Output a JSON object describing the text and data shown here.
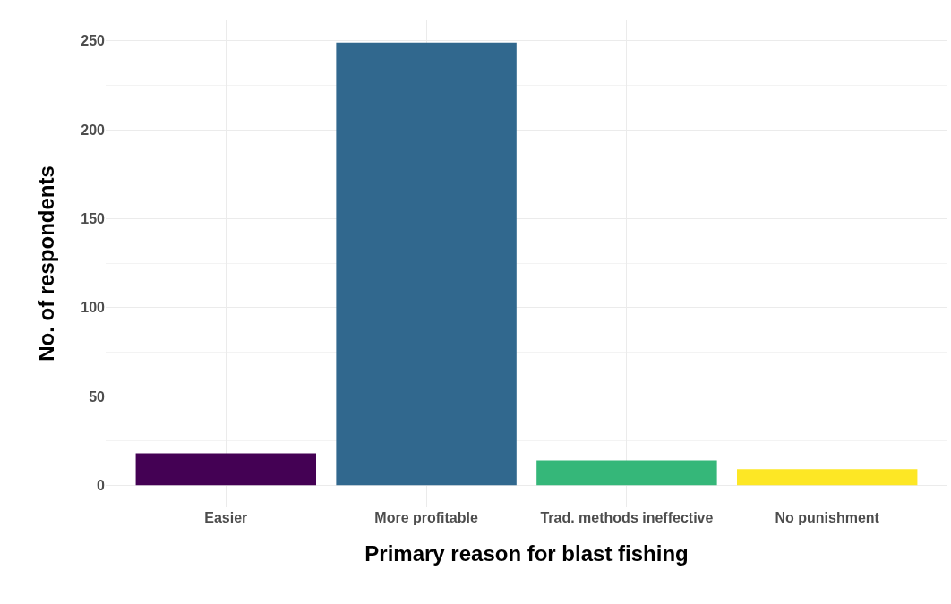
{
  "chart_data": {
    "type": "bar",
    "xlabel": "Primary reason for blast fishing",
    "ylabel": "No. of respondents",
    "categories": [
      "Easier",
      "More profitable",
      "Trad. methods ineffective",
      "No punishment"
    ],
    "values": [
      18,
      249,
      14,
      9
    ],
    "colors": [
      "#440154",
      "#31688e",
      "#35b779",
      "#fde725"
    ],
    "ylim": [
      -12.5,
      262
    ],
    "yticks": [
      0,
      50,
      100,
      150,
      200,
      250
    ],
    "grid": true
  }
}
